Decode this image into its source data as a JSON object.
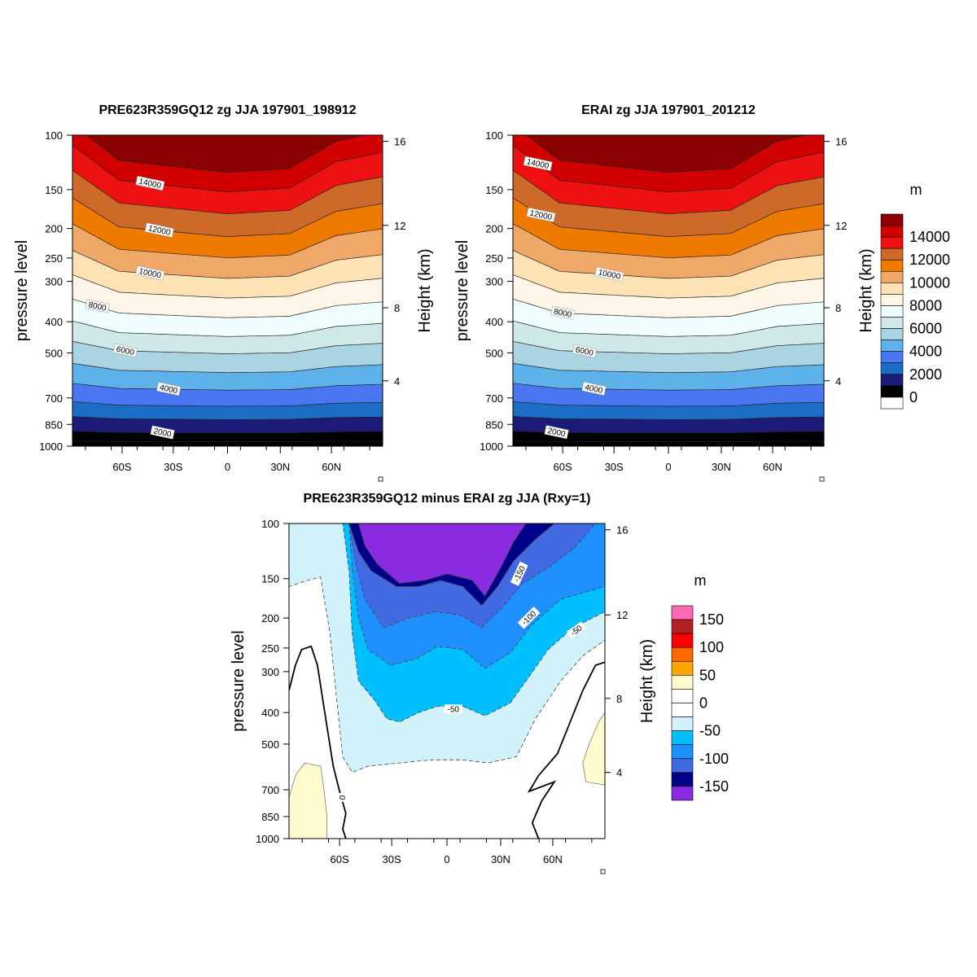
{
  "chart_data": [
    {
      "type": "contour",
      "title": "PRE623R359GQ12 zg JJA 197901_198912",
      "ylabel": "pressure level",
      "ylabel_right": "Height (km)",
      "y_ticks": [
        "100",
        "150",
        "200",
        "250",
        "300",
        "400",
        "500",
        "700",
        "850",
        "1000"
      ],
      "y_right_ticks": [
        "16",
        "12",
        "8",
        "4"
      ],
      "x_ticks": [
        "60S",
        "30S",
        "0",
        "30N",
        "60N"
      ],
      "contour_labels": [
        "14000",
        "12000",
        "10000",
        "8000",
        "6000",
        "4000",
        "2000"
      ]
    },
    {
      "type": "contour",
      "title": "ERAI zg JJA 197901_201212",
      "ylabel": "pressure level",
      "ylabel_right": "Height (km)",
      "y_ticks": [
        "100",
        "150",
        "200",
        "250",
        "300",
        "400",
        "500",
        "700",
        "850",
        "1000"
      ],
      "y_right_ticks": [
        "16",
        "12",
        "8",
        "4"
      ],
      "x_ticks": [
        "60S",
        "30S",
        "0",
        "30N",
        "60N"
      ],
      "contour_labels": [
        "14000",
        "12000",
        "10000",
        "8000",
        "6000",
        "4000",
        "2000"
      ],
      "colorbar": {
        "unit": "m",
        "labels": [
          "14000",
          "12000",
          "10000",
          "8000",
          "6000",
          "4000",
          "2000",
          "0"
        ],
        "colors": [
          "#8b0000",
          "#d10000",
          "#ee1111",
          "#cd6a2a",
          "#ef7a00",
          "#f0a868",
          "#fde3b4",
          "#fdf5e8",
          "#f0feff",
          "#cfe8e8",
          "#abd4e2",
          "#5eb2ea",
          "#4a76f1",
          "#1b6dc5",
          "#1c1c78",
          "#000000",
          "#ffffff"
        ]
      }
    },
    {
      "type": "contour",
      "title": "PRE623R359GQ12 minus ERAI zg JJA (Rxy=1)",
      "ylabel": "pressure level",
      "ylabel_right": "Height (km)",
      "y_ticks": [
        "100",
        "150",
        "200",
        "250",
        "300",
        "400",
        "500",
        "700",
        "850",
        "1000"
      ],
      "y_right_ticks": [
        "16",
        "12",
        "8",
        "4"
      ],
      "x_ticks": [
        "60S",
        "30S",
        "0",
        "30N",
        "60N"
      ],
      "contour_labels": [
        "-150",
        "-100",
        "-50",
        "-50",
        "0"
      ],
      "colorbar": {
        "unit": "m",
        "labels": [
          "150",
          "100",
          "50",
          "0",
          "-50",
          "-100",
          "-150"
        ],
        "colors": [
          "#ff69b4",
          "#b22222",
          "#ff0000",
          "#ff6a00",
          "#ffa500",
          "#fffacd",
          "#ffffff",
          "#ffffff",
          "#d2f2fb",
          "#00bfff",
          "#1e90ff",
          "#4169e1",
          "#00008b",
          "#8a2be2"
        ]
      }
    }
  ]
}
